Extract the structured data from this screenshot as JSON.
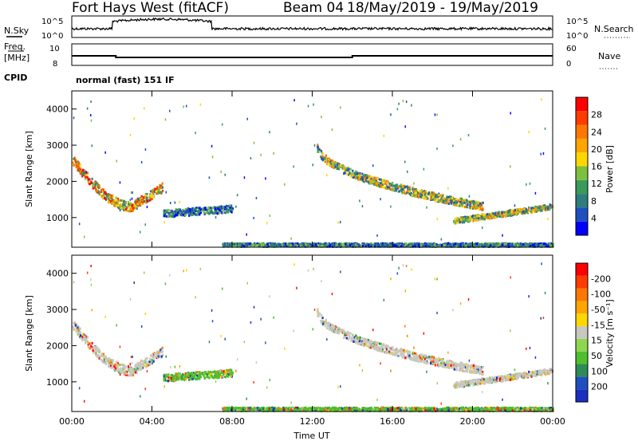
{
  "header": {
    "radar_title": "Fort Hays West (fitACF)",
    "beam_title": "Beam 04",
    "date_range": "18/May/2019 - 19/May/2019"
  },
  "top_panels": {
    "nsky_label": "N.Sky",
    "nsky_ticks": [
      "10^5",
      "10^0"
    ],
    "nsearch_label": "N.Search",
    "nsearch_ticks": [
      "10^5",
      "10^0"
    ],
    "freq_label": "Freq.",
    "freq_unit": "[MHz]",
    "freq_ticks": [
      "10",
      "8"
    ],
    "nave_label": "Nave",
    "nave_ticks": [
      "60",
      "0"
    ],
    "cpid_label": "CPID",
    "cpid_text": "normal (fast) 151 IF"
  },
  "chart_data": [
    {
      "type": "heatmap",
      "panel": "power",
      "ylabel": "Slant Range [km]",
      "ylim": [
        180,
        4500
      ],
      "y_ticks": [
        "1000",
        "2000",
        "3000",
        "4000"
      ],
      "x_ticks": [
        "00:00",
        "04:00",
        "08:00",
        "12:00",
        "16:00",
        "20:00",
        "00:00"
      ],
      "colorbar": {
        "label": "Power [dB]",
        "ticks": [
          "4",
          "8",
          "12",
          "16",
          "20",
          "24",
          "28"
        ],
        "colors": [
          "#0000ff",
          "#1f4fbf",
          "#2e7d7d",
          "#3a9a5a",
          "#7fbf3f",
          "#ffd700",
          "#ffa500",
          "#ff7700",
          "#ff3b00",
          "#ff0000"
        ]
      }
    },
    {
      "type": "heatmap",
      "panel": "velocity",
      "ylabel": "Slant Range [km]",
      "ylim": [
        180,
        4500
      ],
      "y_ticks": [
        "1000",
        "2000",
        "3000",
        "4000"
      ],
      "x_ticks": [
        "00:00",
        "04:00",
        "08:00",
        "12:00",
        "16:00",
        "20:00",
        "00:00"
      ],
      "xlabel": "Time UT",
      "colorbar": {
        "label": "Velocity [m s⁻¹]",
        "ticks": [
          "200",
          "100",
          "50",
          "15",
          "-15",
          "-50",
          "-100",
          "-200"
        ],
        "colors": [
          "#1a2fbf",
          "#1f4fbf",
          "#2e8b57",
          "#4fbf2f",
          "#8fd64f",
          "#c8c8c0",
          "#ffd700",
          "#ffa500",
          "#ff7700",
          "#ff3b00",
          "#ff0000"
        ]
      }
    }
  ]
}
